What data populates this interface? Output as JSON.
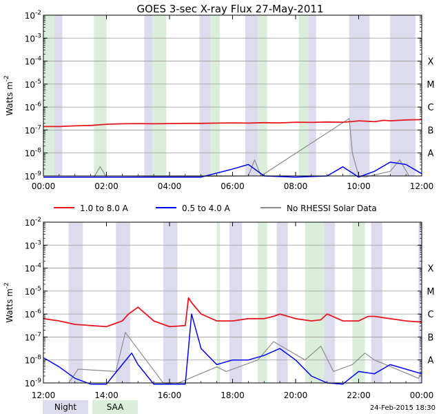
{
  "chart_data": {
    "type": "line",
    "title": "GOES 3-sec X-ray Flux   27-May-2011",
    "ylabel": "Watts m-2",
    "ylabel_base": "Watts m",
    "ylabel_exp": "-2",
    "yscale": "log",
    "ylim_exp": [
      -9,
      -2
    ],
    "y_ticks": [
      {
        "base": "10",
        "exp": "-9",
        "value_exp": -9
      },
      {
        "base": "10",
        "exp": "-8",
        "value_exp": -8
      },
      {
        "base": "10",
        "exp": "-7",
        "value_exp": -7
      },
      {
        "base": "10",
        "exp": "-6",
        "value_exp": -6
      },
      {
        "base": "10",
        "exp": "-5",
        "value_exp": -5
      },
      {
        "base": "10",
        "exp": "-4",
        "value_exp": -4
      },
      {
        "base": "10",
        "exp": "-3",
        "value_exp": -3
      },
      {
        "base": "10",
        "exp": "-2",
        "value_exp": -2
      }
    ],
    "flare_classes": [
      {
        "label": "A",
        "value_exp": -8
      },
      {
        "label": "B",
        "value_exp": -7
      },
      {
        "label": "C",
        "value_exp": -6
      },
      {
        "label": "M",
        "value_exp": -5
      },
      {
        "label": "X",
        "value_exp": -4
      }
    ],
    "series_colors": {
      "long": "#e8161e",
      "short": "#0000ff",
      "norhessi": "#8c8c8c"
    },
    "night_color": "#dcdcee",
    "saa_color": "#dbeedb",
    "legend": [
      {
        "label": "1.0 to 8.0 A",
        "color": "#e8161e"
      },
      {
        "label": "0.5 to 4.0 A",
        "color": "#0000ff"
      },
      {
        "label": "No RHESSI Solar Data",
        "color": "#8c8c8c"
      }
    ],
    "bottom_legend": [
      {
        "label": "Night",
        "color": "#dcdcee"
      },
      {
        "label": "SAA",
        "color": "#dbeedb"
      }
    ],
    "timestamp": "24-Feb-2015 18:30",
    "panels": [
      {
        "name": "panel-top",
        "x_range_hours": [
          0,
          12
        ],
        "x_tick_labels": [
          "00:00",
          "02:00",
          "04:00",
          "06:00",
          "08:00",
          "10:00",
          "12:00"
        ],
        "night_bands": [
          [
            0.0,
            0.6
          ],
          [
            3.2,
            3.5
          ],
          [
            4.95,
            5.3
          ],
          [
            6.4,
            6.8
          ],
          [
            8.4,
            8.65
          ],
          [
            9.7,
            10.35
          ],
          [
            11.0,
            11.8
          ]
        ],
        "saa_bands": [
          [
            0.0,
            0.35
          ],
          [
            1.6,
            2.0
          ],
          [
            3.45,
            3.9
          ],
          [
            5.3,
            5.6
          ],
          [
            6.8,
            7.1
          ],
          [
            8.1,
            8.4
          ]
        ],
        "long_channel": {
          "x": [
            0.0,
            0.5,
            1.0,
            1.5,
            2.0,
            2.5,
            3.0,
            3.5,
            4.0,
            4.5,
            5.0,
            5.5,
            6.0,
            6.5,
            7.0,
            7.5,
            8.0,
            8.5,
            9.0,
            9.5,
            9.8,
            10.0,
            10.3,
            10.5,
            10.8,
            11.0,
            11.5,
            12.0
          ],
          "y_exp": [
            -6.85,
            -6.85,
            -6.82,
            -6.8,
            -6.75,
            -6.73,
            -6.72,
            -6.73,
            -6.72,
            -6.71,
            -6.71,
            -6.7,
            -6.69,
            -6.7,
            -6.68,
            -6.69,
            -6.66,
            -6.67,
            -6.65,
            -6.66,
            -6.63,
            -6.6,
            -6.62,
            -6.64,
            -6.58,
            -6.6,
            -6.56,
            -6.55
          ]
        },
        "short_channel": {
          "x": [
            0.0,
            1.0,
            2.0,
            3.0,
            4.0,
            5.0,
            6.0,
            6.5,
            7.0,
            8.0,
            9.0,
            9.5,
            10.0,
            10.5,
            11.0,
            11.5,
            12.0
          ],
          "y_exp": [
            -9.3,
            -9.4,
            -9.5,
            -9.3,
            -9.1,
            -9.2,
            -8.7,
            -8.5,
            -9.0,
            -9.3,
            -9.0,
            -8.6,
            -9.1,
            -8.8,
            -8.4,
            -8.5,
            -8.9
          ]
        },
        "norhessi_channel": {
          "x": [
            1.6,
            1.8,
            2.0,
            6.5,
            6.7,
            6.9,
            9.7,
            9.8,
            10.0,
            10.2,
            11.0,
            11.3,
            11.6
          ],
          "y_exp": [
            -9.5,
            -8.6,
            -9.5,
            -9.0,
            -8.3,
            -9.0,
            -6.5,
            -8.0,
            -9.0,
            -9.3,
            -8.8,
            -8.3,
            -9.0
          ]
        }
      },
      {
        "name": "panel-bottom",
        "x_range_hours": [
          12,
          24
        ],
        "x_tick_labels": [
          "12:00",
          "14:00",
          "16:00",
          "18:00",
          "20:00",
          "22:00",
          "00:00"
        ],
        "night_bands": [
          [
            12.8,
            13.25
          ],
          [
            14.3,
            14.75
          ],
          [
            15.8,
            16.25
          ],
          [
            17.9,
            18.3
          ],
          [
            19.4,
            19.75
          ],
          [
            20.9,
            21.25
          ],
          [
            22.4,
            22.75
          ],
          [
            23.9,
            24.0
          ]
        ],
        "saa_bands": [
          [
            17.5,
            17.6
          ],
          [
            18.8,
            19.1
          ],
          [
            20.3,
            20.9
          ],
          [
            21.8,
            22.2
          ]
        ],
        "long_channel": {
          "x": [
            12.0,
            12.5,
            13.0,
            13.5,
            14.0,
            14.5,
            14.7,
            15.0,
            15.5,
            16.0,
            16.5,
            16.6,
            16.7,
            17.0,
            17.5,
            18.0,
            18.5,
            19.0,
            19.3,
            19.5,
            20.0,
            20.5,
            20.8,
            21.0,
            21.5,
            22.0,
            22.3,
            22.5,
            23.0,
            23.5,
            24.0
          ],
          "y_exp": [
            -6.2,
            -6.3,
            -6.45,
            -6.5,
            -6.55,
            -6.3,
            -6.0,
            -5.7,
            -6.3,
            -6.55,
            -6.5,
            -5.3,
            -5.5,
            -6.0,
            -6.3,
            -6.3,
            -6.2,
            -6.2,
            -6.1,
            -6.0,
            -6.2,
            -6.3,
            -6.25,
            -6.0,
            -6.3,
            -6.3,
            -6.1,
            -6.1,
            -6.2,
            -6.3,
            -6.35
          ]
        },
        "short_channel": {
          "x": [
            12.0,
            12.5,
            13.0,
            13.5,
            14.0,
            14.5,
            14.8,
            15.0,
            15.5,
            15.8,
            16.5,
            16.7,
            17.0,
            17.5,
            18.0,
            18.5,
            19.0,
            19.5,
            20.0,
            20.5,
            21.0,
            21.5,
            22.0,
            22.5,
            23.0,
            23.5,
            24.0
          ],
          "y_exp": [
            -7.9,
            -8.3,
            -8.8,
            -9.1,
            -9.3,
            -8.2,
            -7.7,
            -8.2,
            -9.3,
            -9.5,
            -9.5,
            -6.0,
            -7.5,
            -8.2,
            -8.0,
            -8.0,
            -7.8,
            -7.5,
            -8.0,
            -8.7,
            -9.0,
            -9.2,
            -8.5,
            -8.6,
            -8.2,
            -8.4,
            -8.6
          ]
        },
        "norhessi_channel": {
          "x": [
            12.8,
            13.1,
            14.3,
            14.6,
            15.8,
            16.2,
            17.5,
            17.8,
            18.8,
            19.3,
            20.3,
            20.8,
            21.2,
            21.8,
            22.2,
            22.5,
            23.9,
            24.0
          ],
          "y_exp": [
            -9.0,
            -8.4,
            -8.5,
            -6.8,
            -9.0,
            -9.3,
            -8.3,
            -8.5,
            -8.0,
            -7.2,
            -8.0,
            -7.4,
            -8.5,
            -8.2,
            -7.7,
            -8.0,
            -8.8,
            -8.5
          ]
        }
      }
    ]
  }
}
